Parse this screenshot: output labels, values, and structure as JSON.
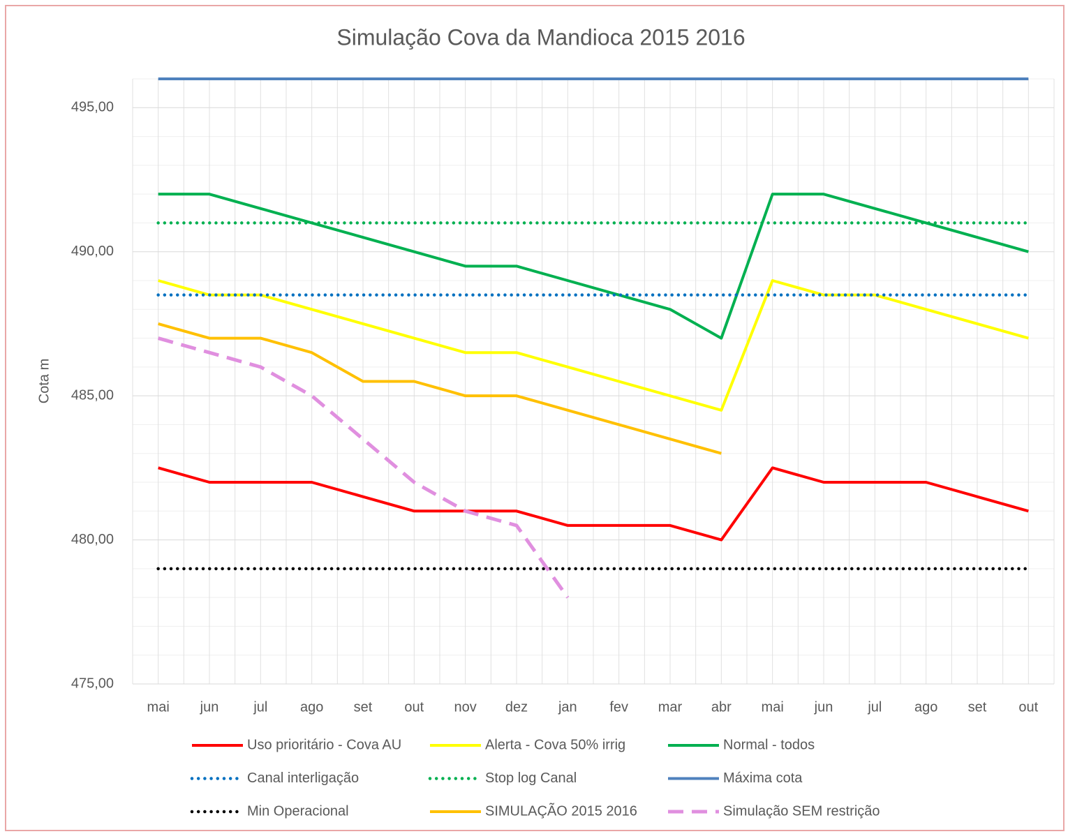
{
  "chart_data": {
    "type": "line",
    "title": "Simulação Cova da Mandioca 2015 2016",
    "y_label": "Cota m",
    "categories": [
      "mai",
      "jun",
      "jul",
      "ago",
      "set",
      "out",
      "nov",
      "dez",
      "jan",
      "fev",
      "mar",
      "abr",
      "mai",
      "jun",
      "jul",
      "ago",
      "set",
      "out"
    ],
    "ylim": [
      475,
      496
    ],
    "yticks": [
      {
        "value": 475,
        "label": "475,00"
      },
      {
        "value": 480,
        "label": "480,00"
      },
      {
        "value": 485,
        "label": "485,00"
      },
      {
        "value": 490,
        "label": "490,00"
      },
      {
        "value": 495,
        "label": "495,00"
      }
    ],
    "yminorticks": [
      476,
      477,
      478,
      479,
      481,
      482,
      483,
      484,
      486,
      487,
      488,
      489,
      491,
      492,
      493,
      494,
      496
    ],
    "grid": true,
    "series": [
      {
        "name": "Uso prioritário - Cova AU",
        "color": "#ff0000",
        "dash": "solid",
        "values": [
          482.5,
          482,
          482,
          482,
          481.5,
          481,
          481,
          481,
          480.5,
          480.5,
          480.5,
          480,
          482.5,
          482,
          482,
          482,
          481.5,
          481
        ]
      },
      {
        "name": "Alerta - Cova 50% irrig",
        "color": "#ffff00",
        "dash": "solid",
        "values": [
          489,
          488.5,
          488.5,
          488,
          487.5,
          487,
          486.5,
          486.5,
          486,
          485.5,
          485,
          484.5,
          489,
          488.5,
          488.5,
          488,
          487.5,
          487
        ]
      },
      {
        "name": "Normal - todos",
        "color": "#00b050",
        "dash": "solid",
        "values": [
          492,
          492,
          491.5,
          491,
          490.5,
          490,
          489.5,
          489.5,
          489,
          488.5,
          488,
          487,
          492,
          492,
          491.5,
          491,
          490.5,
          490
        ]
      },
      {
        "name": "Canal interligação",
        "color": "#0070c0",
        "dash": "dotted",
        "values": [
          488.5,
          488.5,
          488.5,
          488.5,
          488.5,
          488.5,
          488.5,
          488.5,
          488.5,
          488.5,
          488.5,
          488.5,
          488.5,
          488.5,
          488.5,
          488.5,
          488.5,
          488.5
        ]
      },
      {
        "name": "Stop log Canal",
        "color": "#00b050",
        "dash": "dotted",
        "values": [
          491,
          491,
          491,
          491,
          491,
          491,
          491,
          491,
          491,
          491,
          491,
          491,
          491,
          491,
          491,
          491,
          491,
          491
        ]
      },
      {
        "name": "Máxima cota",
        "color": "#4f81bd",
        "dash": "solid",
        "values": [
          496,
          496,
          496,
          496,
          496,
          496,
          496,
          496,
          496,
          496,
          496,
          496,
          496,
          496,
          496,
          496,
          496,
          496
        ]
      },
      {
        "name": "Min Operacional",
        "color": "#000000",
        "dash": "dotted",
        "values": [
          479,
          479,
          479,
          479,
          479,
          479,
          479,
          479,
          479,
          479,
          479,
          479,
          479,
          479,
          479,
          479,
          479,
          479
        ]
      },
      {
        "name": "SIMULAÇÃO 2015 2016",
        "color": "#ffc000",
        "dash": "solid",
        "values": [
          487.5,
          487,
          487,
          486.5,
          485.5,
          485.5,
          485,
          485,
          484.5,
          484,
          483.5,
          483,
          null,
          null,
          null,
          null,
          null,
          null
        ]
      },
      {
        "name": "Simulação SEM restrição",
        "color": "#e08fdf",
        "dash": "dashed",
        "values": [
          487,
          486.5,
          486,
          485,
          483.5,
          482,
          481,
          480.5,
          478,
          null,
          null,
          null,
          null,
          null,
          null,
          null,
          null,
          null
        ]
      }
    ]
  }
}
